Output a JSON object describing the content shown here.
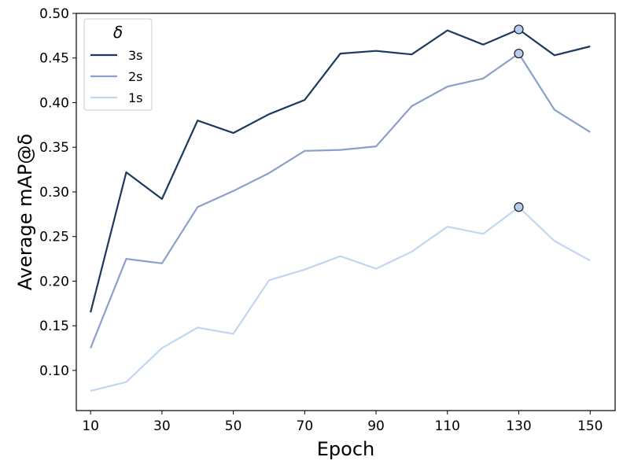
{
  "chart_data": {
    "type": "line",
    "xlabel": "Epoch",
    "ylabel": "Average mAP@δ",
    "xlim": [
      6,
      157
    ],
    "ylim": [
      0.055,
      0.5
    ],
    "xticks": [
      10,
      30,
      50,
      70,
      90,
      110,
      130,
      150
    ],
    "yticks": [
      0.1,
      0.15,
      0.2,
      0.25,
      0.3,
      0.35,
      0.4,
      0.45,
      0.5
    ],
    "x": [
      10,
      20,
      30,
      40,
      50,
      60,
      70,
      80,
      90,
      100,
      110,
      120,
      130,
      140,
      150
    ],
    "legend": {
      "title": "δ",
      "position": "top-left"
    },
    "series": [
      {
        "name": "3s",
        "color": "#1b3a5c",
        "values": [
          0.165,
          0.322,
          0.292,
          0.38,
          0.366,
          0.387,
          0.403,
          0.455,
          0.458,
          0.454,
          0.481,
          0.465,
          0.482,
          0.453,
          0.463
        ],
        "highlight_x": 130
      },
      {
        "name": "2s",
        "color": "#8b9fc8",
        "values": [
          0.125,
          0.225,
          0.22,
          0.283,
          0.301,
          0.321,
          0.346,
          0.347,
          0.351,
          0.396,
          0.418,
          0.427,
          0.455,
          0.392,
          0.367
        ],
        "highlight_x": 130
      },
      {
        "name": "1s",
        "color": "#c2d6f2",
        "values": [
          0.077,
          0.087,
          0.125,
          0.148,
          0.141,
          0.201,
          0.213,
          0.228,
          0.214,
          0.233,
          0.261,
          0.253,
          0.283,
          0.245,
          0.223
        ],
        "highlight_x": 130
      }
    ],
    "marker_fill": "#b7cdf0"
  }
}
